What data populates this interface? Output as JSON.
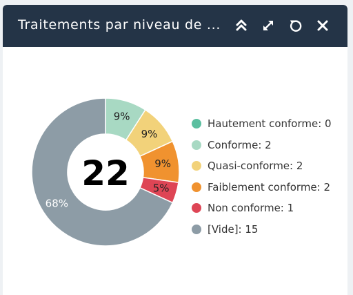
{
  "widget": {
    "title": "Traitements par niveau de ...",
    "buttons": {
      "collapse": "collapse-icon",
      "expand": "expand-icon",
      "refresh": "refresh-icon",
      "close": "close-icon"
    }
  },
  "chart_data": {
    "type": "pie",
    "center_label": "22",
    "categories": [
      "Hautement conforme",
      "Conforme",
      "Quasi-conforme",
      "Faiblement conforme",
      "Non conforme",
      "[Vide]"
    ],
    "values": [
      0,
      2,
      2,
      2,
      1,
      15
    ],
    "colors": [
      "#5bbfa0",
      "#a8d9c3",
      "#f2d27a",
      "#f0922f",
      "#de4555",
      "#8d9ca6"
    ],
    "slice_labels": [
      "",
      "9%",
      "9%",
      "9%",
      "5%",
      "68%"
    ],
    "legend_labels": [
      "Hautement conforme: 0",
      "Conforme: 2",
      "Quasi-conforme: 2",
      "Faiblement conforme: 2",
      "Non conforme: 1",
      "[Vide]: 15"
    ],
    "legend_position": "right"
  }
}
